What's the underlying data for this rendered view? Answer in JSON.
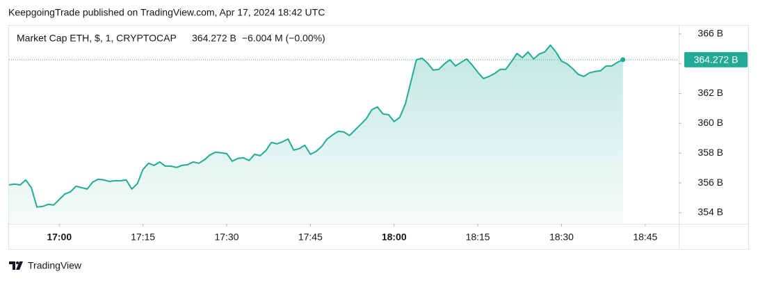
{
  "header": "KeepgoingTrade published on TradingView.com, Apr 17, 2024 18:42 UTC",
  "footer": "TradingView",
  "chart_data": {
    "type": "area",
    "series": [
      {
        "name": "Market Cap ETH, $, 1, CRYPTOCAP",
        "color": "#22ab94",
        "values": [
          355.87,
          355.92,
          355.87,
          356.2,
          355.68,
          354.38,
          354.42,
          354.56,
          354.52,
          354.89,
          355.26,
          355.4,
          355.78,
          355.68,
          355.59,
          356.06,
          356.25,
          356.2,
          356.1,
          356.15,
          356.15,
          356.2,
          355.59,
          355.96,
          356.9,
          357.32,
          357.18,
          357.41,
          357.13,
          357.13,
          357.04,
          357.18,
          357.22,
          357.41,
          357.32,
          357.55,
          357.88,
          358.06,
          358.02,
          357.97,
          357.46,
          357.64,
          357.69,
          357.5,
          357.92,
          357.83,
          358.16,
          358.72,
          358.62,
          358.76,
          358.95,
          358.2,
          358.3,
          358.53,
          357.92,
          358.11,
          358.44,
          358.95,
          359.23,
          359.46,
          359.42,
          359.18,
          359.56,
          359.93,
          360.3,
          360.91,
          361.1,
          360.63,
          360.58,
          360.12,
          360.4,
          361.28,
          362.78,
          364.27,
          364.37,
          364.04,
          363.57,
          363.62,
          363.99,
          364.27,
          363.85,
          364.09,
          364.32,
          363.9,
          363.43,
          363.01,
          363.15,
          363.34,
          363.62,
          363.62,
          364.13,
          364.69,
          364.41,
          364.79,
          364.32,
          364.65,
          364.79,
          365.25,
          364.79,
          364.18,
          363.99,
          363.67,
          363.29,
          363.15,
          363.39,
          363.48,
          363.53,
          363.85,
          363.85,
          364.09,
          364.272
        ]
      }
    ],
    "x": [
      "16:51",
      "16:52",
      "16:53",
      "16:54",
      "16:55",
      "16:56",
      "16:57",
      "16:58",
      "16:59",
      "17:00",
      "17:01",
      "17:02",
      "17:03",
      "17:04",
      "17:05",
      "17:06",
      "17:07",
      "17:08",
      "17:09",
      "17:10",
      "17:11",
      "17:12",
      "17:13",
      "17:14",
      "17:15",
      "17:16",
      "17:17",
      "17:18",
      "17:19",
      "17:20",
      "17:21",
      "17:22",
      "17:23",
      "17:24",
      "17:25",
      "17:26",
      "17:27",
      "17:28",
      "17:29",
      "17:30",
      "17:31",
      "17:32",
      "17:33",
      "17:34",
      "17:35",
      "17:36",
      "17:37",
      "17:38",
      "17:39",
      "17:40",
      "17:41",
      "17:42",
      "17:43",
      "17:44",
      "17:45",
      "17:46",
      "17:47",
      "17:48",
      "17:49",
      "17:50",
      "17:51",
      "17:52",
      "17:53",
      "17:54",
      "17:55",
      "17:56",
      "17:57",
      "17:58",
      "17:59",
      "18:00",
      "18:01",
      "18:02",
      "18:03",
      "18:04",
      "18:05",
      "18:06",
      "18:07",
      "18:08",
      "18:09",
      "18:10",
      "18:11",
      "18:12",
      "18:13",
      "18:14",
      "18:15",
      "18:16",
      "18:17",
      "18:18",
      "18:19",
      "18:20",
      "18:21",
      "18:22",
      "18:23",
      "18:24",
      "18:25",
      "18:26",
      "18:27",
      "18:28",
      "18:29",
      "18:30",
      "18:31",
      "18:32",
      "18:33",
      "18:34",
      "18:35",
      "18:36",
      "18:37",
      "18:38",
      "18:39",
      "18:40",
      "18:41"
    ],
    "last_label": "364.272 B",
    "change_label": "−6.004 M (−0.00%)",
    "xlim": [
      "16:51",
      "18:51"
    ],
    "xticks": [
      "17:00",
      "17:15",
      "17:30",
      "17:45",
      "18:00",
      "18:15",
      "18:30",
      "18:45"
    ],
    "ylim": [
      353.25,
      366.55
    ],
    "yticks": [
      {
        "value": 354,
        "label": "354 B"
      },
      {
        "value": 356,
        "label": "356 B"
      },
      {
        "value": 358,
        "label": "358 B"
      },
      {
        "value": 360,
        "label": "360 B"
      },
      {
        "value": 362,
        "label": "362 B"
      },
      {
        "value": 364,
        "label": "364 B"
      },
      {
        "value": 366,
        "label": "366 B"
      }
    ]
  }
}
